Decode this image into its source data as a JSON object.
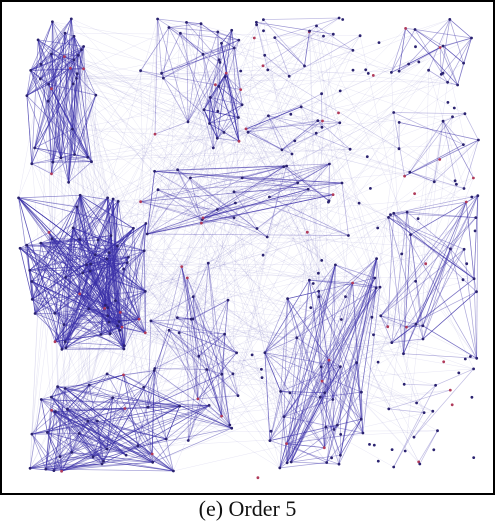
{
  "figure": {
    "caption": "(e) Order 5",
    "colors": {
      "edge": "#3a2fa8",
      "node": "#2a2270",
      "node_alt": "#b03a5a",
      "frame": "#000000",
      "background": "#ffffff"
    }
  }
}
